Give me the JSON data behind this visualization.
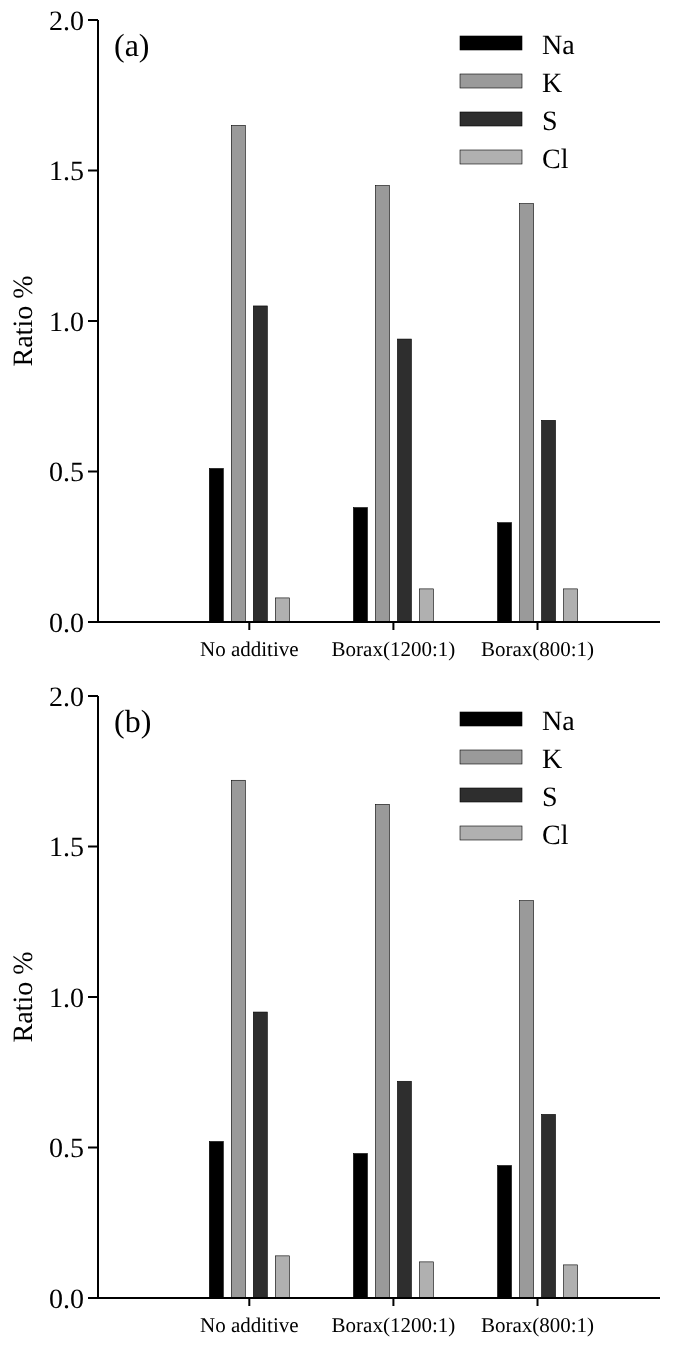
{
  "chart_data": [
    {
      "type": "bar",
      "title": "(a)",
      "ylabel": "Ratio %",
      "categories": [
        "No additive",
        "Borax(1200:1)",
        "Borax(800:1)"
      ],
      "series": [
        {
          "name": "Na",
          "color": "#000000",
          "values": [
            0.51,
            0.38,
            0.33
          ]
        },
        {
          "name": "K",
          "color": "#9a9a9a",
          "values": [
            1.65,
            1.45,
            1.39
          ]
        },
        {
          "name": "S",
          "color": "#2e2e2e",
          "values": [
            1.05,
            0.94,
            0.67
          ]
        },
        {
          "name": "Cl",
          "color": "#b0b0b0",
          "values": [
            0.08,
            0.11,
            0.11
          ]
        }
      ],
      "ylim": [
        0,
        2
      ],
      "yticks": [
        {
          "value": 0,
          "label": "0.0"
        },
        {
          "value": 0.5,
          "label": "0.5"
        },
        {
          "value": 1,
          "label": "1.0"
        },
        {
          "value": 1.5,
          "label": "1.5"
        },
        {
          "value": 2,
          "label": "2.0"
        }
      ],
      "legend": "top right",
      "grid": false
    },
    {
      "type": "bar",
      "title": "(b)",
      "ylabel": "Ratio %",
      "categories": [
        "No additive",
        "Borax(1200:1)",
        "Borax(800:1)"
      ],
      "series": [
        {
          "name": "Na",
          "color": "#000000",
          "values": [
            0.52,
            0.48,
            0.44
          ]
        },
        {
          "name": "K",
          "color": "#9a9a9a",
          "values": [
            1.72,
            1.64,
            1.32
          ]
        },
        {
          "name": "S",
          "color": "#2e2e2e",
          "values": [
            0.95,
            0.72,
            0.61
          ]
        },
        {
          "name": "Cl",
          "color": "#b0b0b0",
          "values": [
            0.14,
            0.12,
            0.11
          ]
        }
      ],
      "ylim": [
        0,
        2
      ],
      "yticks": [
        {
          "value": 0,
          "label": "0.0"
        },
        {
          "value": 0.5,
          "label": "0.5"
        },
        {
          "value": 1,
          "label": "1.0"
        },
        {
          "value": 1.5,
          "label": "1.5"
        },
        {
          "value": 2,
          "label": "2.0"
        }
      ],
      "legend": "top right",
      "grid": false
    }
  ]
}
